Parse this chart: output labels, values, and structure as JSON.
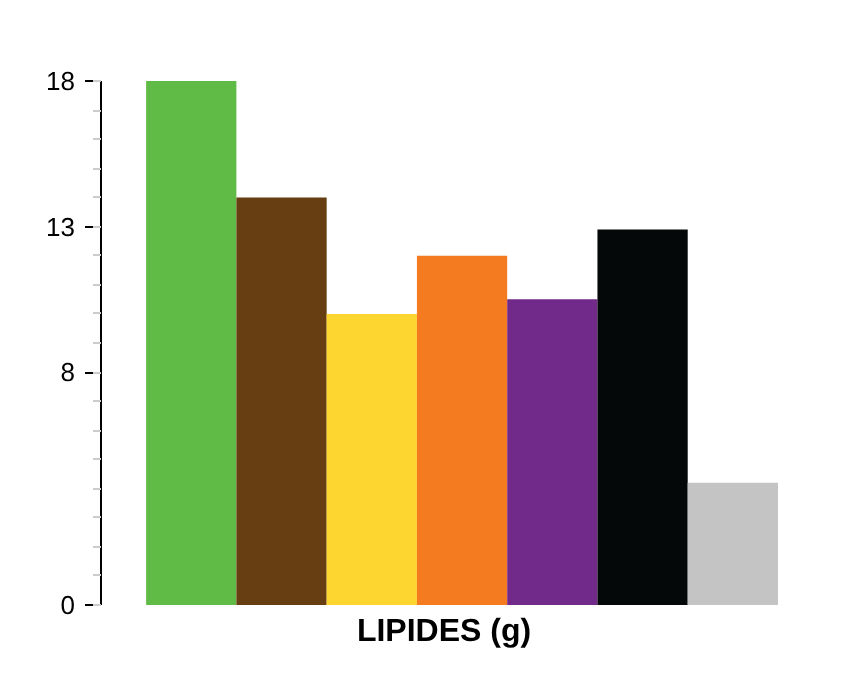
{
  "chart_data": {
    "type": "bar",
    "xlabel": "LIPIDES (g)",
    "categories": [
      null,
      null,
      null,
      null,
      null,
      null,
      null
    ],
    "values": [
      18,
      14,
      10,
      12,
      10.5,
      12.9,
      4.2
    ],
    "colors": [
      "#5fbb46",
      "#673d12",
      "#fed630",
      "#f47b20",
      "#722a8a",
      "#040808",
      "#c3c4c3"
    ],
    "ylim": [
      0,
      18
    ],
    "yticks": [
      0,
      8,
      13,
      18
    ],
    "grid": false
  }
}
